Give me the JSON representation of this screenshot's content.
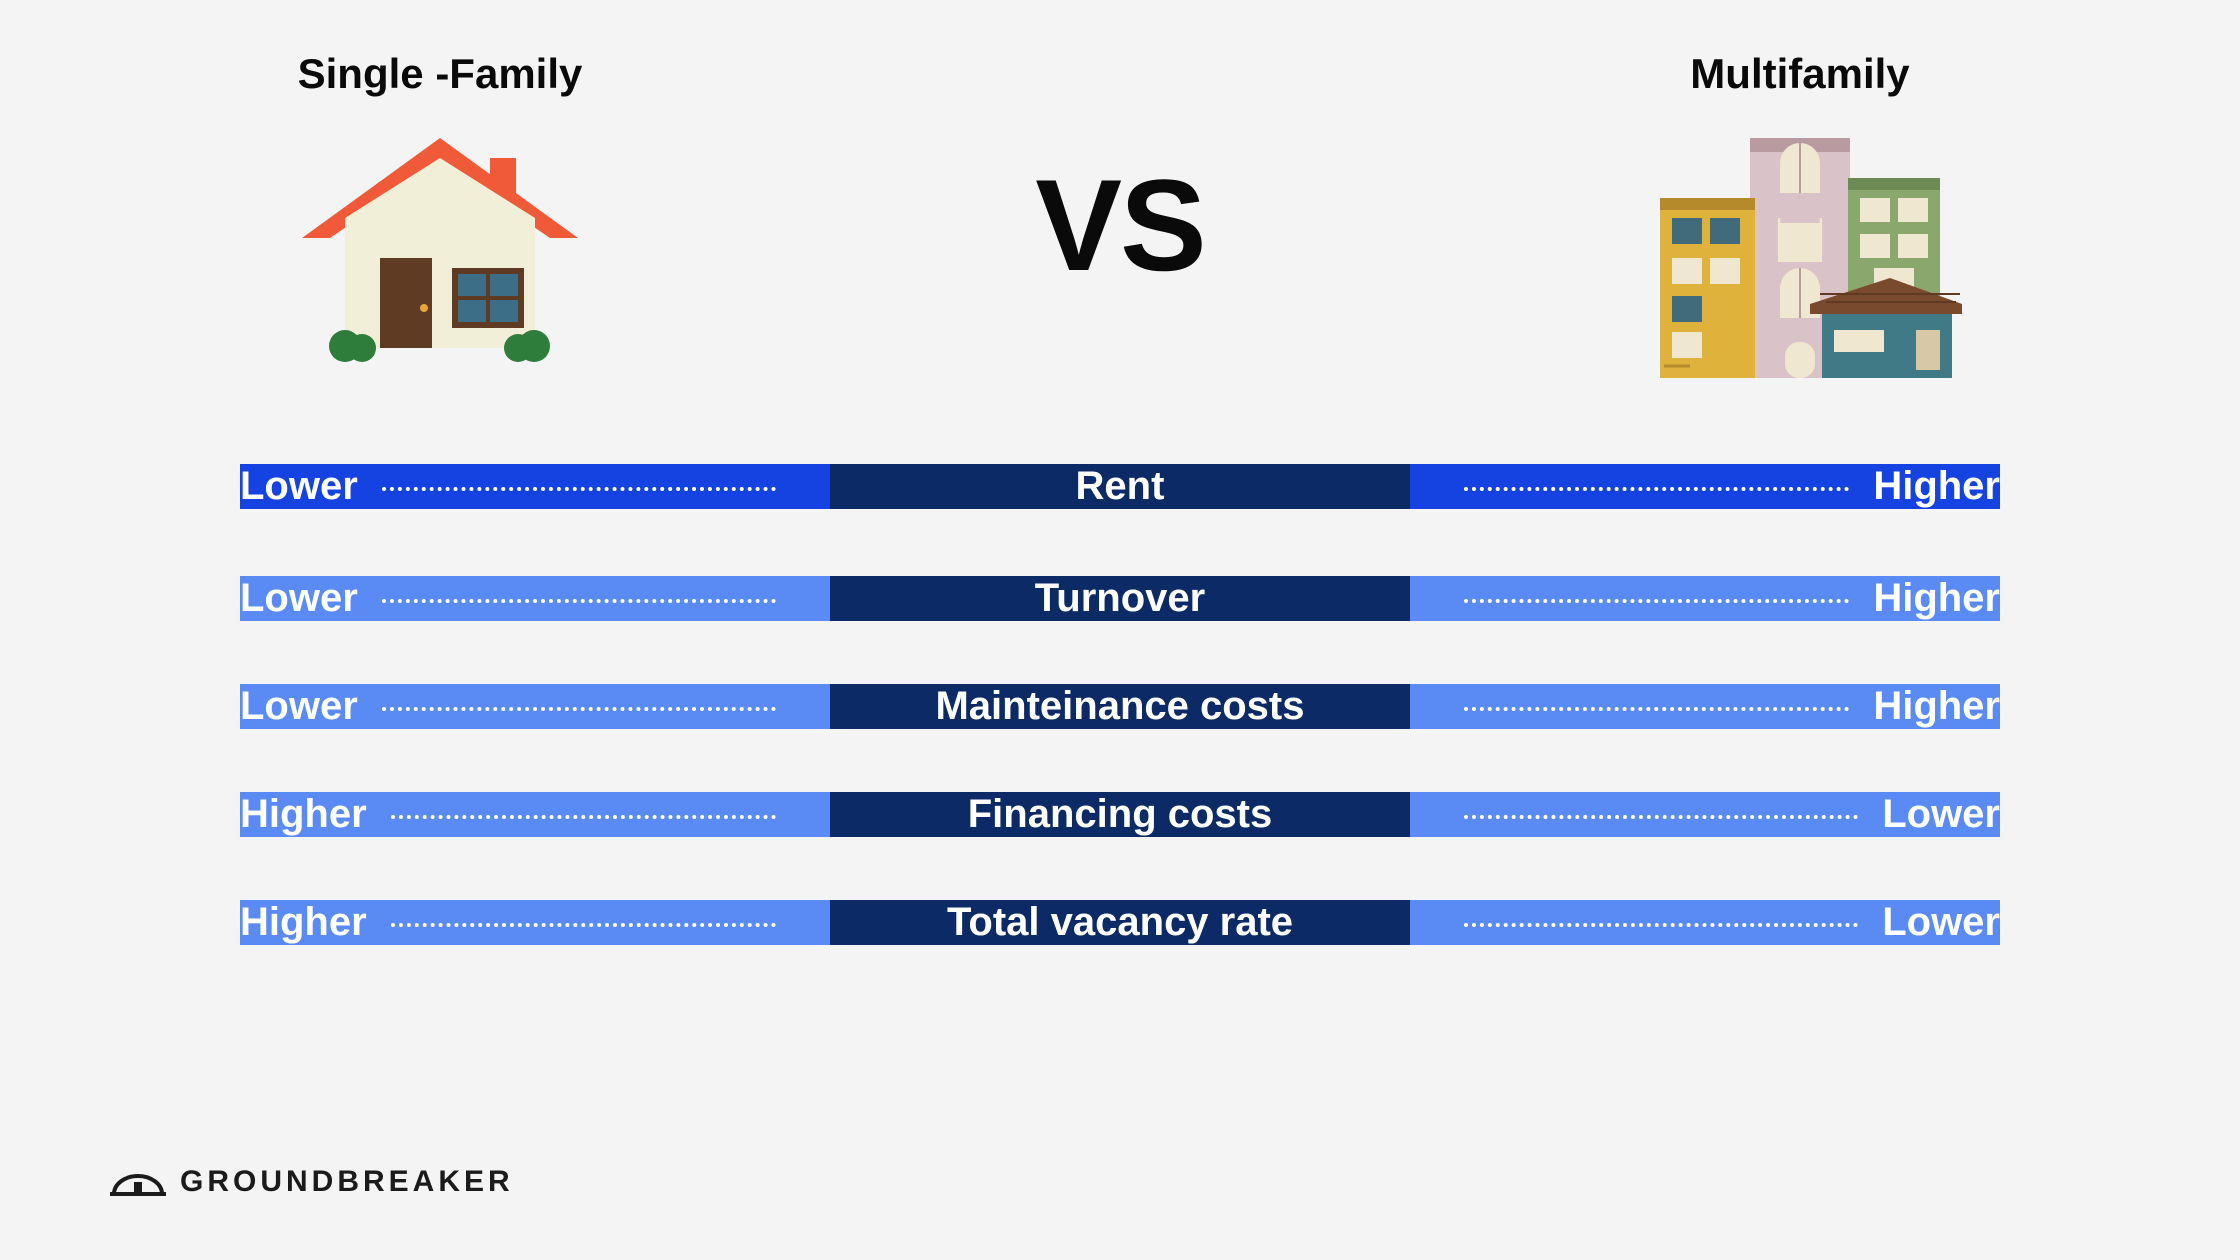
{
  "header": {
    "left_title": "Single -Family",
    "right_title": "Multifamily",
    "vs_label": "VS"
  },
  "colors": {
    "page_bg": "#f4f4f4",
    "text": "#0a0a0a",
    "row_highlight_left": "#1443e2",
    "row_highlight_right": "#1443e2",
    "row_left_bg": "#5a8bf5",
    "row_right_bg": "#5a8bf5",
    "center_bg": "#0b2a66",
    "cell_text": "#ffffff",
    "dots": "#ffffff"
  },
  "house": {
    "roof": "#f15a38",
    "wall": "#f1efd8",
    "door": "#5e3b22",
    "knob": "#e8a53a",
    "window_frame": "#5e3b22",
    "window_glass": "#3c6f87",
    "chimney": "#f15a38",
    "bushes": "#2f7d3b"
  },
  "multi": {
    "yellow": "#dfb23b",
    "yellow_dark": "#b58a2a",
    "pink": "#d9c3c8",
    "pink_dark": "#b99aa1",
    "green": "#8aa86d",
    "green_dark": "#6d8a54",
    "teal": "#3f7a86",
    "teal_dark": "#2e5d66",
    "roof_brown": "#7a4a2d",
    "window_light": "#efe7cf",
    "window_blue": "#416a7a",
    "door": "#d7c9a7"
  },
  "table": {
    "header_row_index": 0,
    "rows": [
      {
        "left": "Lower",
        "center": "Rent",
        "right": "Higher"
      },
      {
        "left": "Lower",
        "center": "Turnover",
        "right": "Higher"
      },
      {
        "left": "Lower",
        "center": "Mainteinance costs",
        "right": "Higher"
      },
      {
        "left": "Higher",
        "center": "Financing costs",
        "right": "Lower"
      },
      {
        "left": "Higher",
        "center": "Total vacancy rate",
        "right": "Lower"
      }
    ]
  },
  "footer": {
    "brand": "GROUNDBREAKER"
  }
}
